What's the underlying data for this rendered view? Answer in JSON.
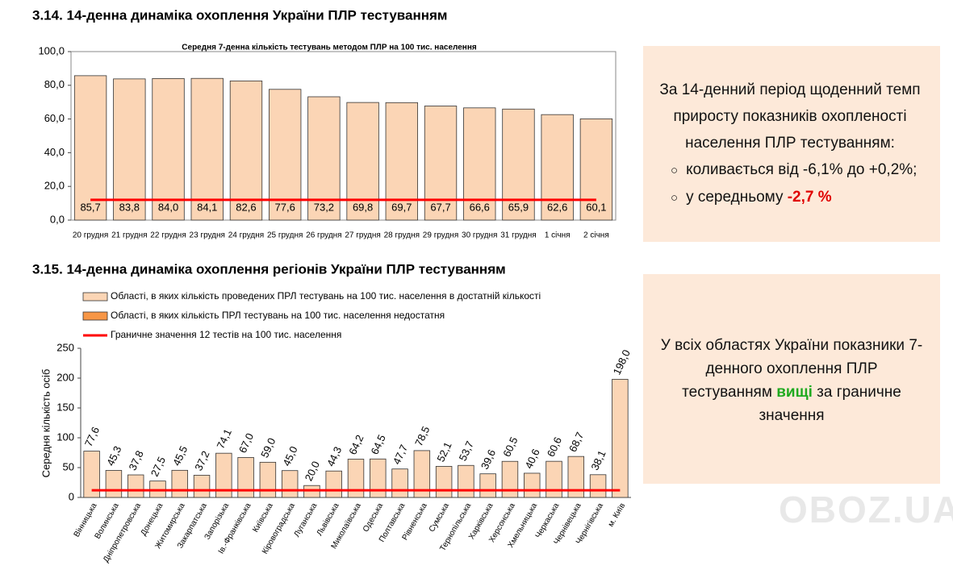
{
  "headings": [
    "3.14.  14-денна динаміка охоплення України ПЛР тестуванням",
    "3.15.  14-денна динаміка охоплення регіонів України ПЛР тестуванням"
  ],
  "chart_data": [
    {
      "type": "bar",
      "title": "Середня 7-денна кількість тестувань  методом ПЛР на 100 тис. населення",
      "categories": [
        "20 грудня",
        "21 грудня",
        "22 грудня",
        "23 грудня",
        "24 грудня",
        "25 грудня",
        "26 грудня",
        "27 грудня",
        "28 грудня",
        "29 грудня",
        "30 грудня",
        "31 грудня",
        "1 січня",
        "2 січня"
      ],
      "values": [
        85.7,
        83.8,
        84.0,
        84.1,
        82.6,
        77.6,
        73.2,
        69.8,
        69.7,
        67.7,
        66.6,
        65.9,
        62.6,
        60.1
      ],
      "value_labels": [
        "85,7",
        "83,8",
        "84,0",
        "84,1",
        "82,6",
        "77,6",
        "73,2",
        "69,8",
        "69,7",
        "67,7",
        "66,6",
        "65,9",
        "62,6",
        "60,1"
      ],
      "color": "#fbd5b5",
      "ylim": [
        0,
        100
      ],
      "yticks": [
        {
          "value": 0,
          "label": "0,0"
        },
        {
          "value": 20,
          "label": "20,0"
        },
        {
          "value": 40,
          "label": "40,0"
        },
        {
          "value": 60,
          "label": "60,0"
        },
        {
          "value": 80,
          "label": "80,0"
        },
        {
          "value": 100,
          "label": "100,0"
        }
      ],
      "reference_line": {
        "value": 12,
        "color": "#ff0000"
      }
    },
    {
      "type": "bar",
      "y_label": "Середня кількість осіб",
      "categories": [
        "Вінницька",
        "Волинська",
        "Дніпропетровська",
        "Донецька",
        "Житомирська",
        "Закарпатська",
        "Запорізька",
        "Ів.-Франківська",
        "Київська",
        "Кіровоградська",
        "Луганська",
        "Львівська",
        "Миколаївська",
        "Одеська",
        "Полтавська",
        "Рівненська",
        "Сумська",
        "Тернопільська",
        "Харківська",
        "Херсонська",
        "Хмельницька",
        "Черкаська",
        "Чернівецька",
        "Чернігівська",
        "м. Київ"
      ],
      "series": [
        {
          "name": "Області, в яких кількість проведених ПРЛ тестувань на 100 тис. населення в достатній кількості",
          "color": "#fbd5b5",
          "values": [
            77.6,
            45.3,
            37.8,
            27.5,
            45.5,
            37.2,
            74.1,
            67.0,
            59.0,
            45.0,
            20.0,
            44.3,
            64.2,
            64.5,
            47.7,
            78.5,
            52.1,
            53.7,
            39.6,
            60.5,
            40.6,
            60.6,
            68.7,
            38.1,
            198.0
          ],
          "value_labels": [
            "77,6",
            "45,3",
            "37,8",
            "27,5",
            "45,5",
            "37,2",
            "74,1",
            "67,0",
            "59,0",
            "45,0",
            "20,0",
            "44,3",
            "64,2",
            "64,5",
            "47,7",
            "78,5",
            "52,1",
            "53,7",
            "39,6",
            "60,5",
            "40,6",
            "60,6",
            "68,7",
            "38,1",
            "198,0"
          ]
        },
        {
          "name": "Області, в яких кількість ПРЛ тестувань на 100 тис. населення недостатня",
          "color": "#f79646",
          "values": [
            null,
            null,
            null,
            null,
            null,
            null,
            null,
            null,
            null,
            null,
            null,
            null,
            null,
            null,
            null,
            null,
            null,
            null,
            null,
            null,
            null,
            null,
            null,
            null,
            null
          ]
        }
      ],
      "ylim": [
        0,
        250
      ],
      "yticks": [
        0,
        50,
        100,
        150,
        200,
        250
      ],
      "reference_line": {
        "value": 12,
        "color": "#ff0000",
        "name": "Граничне значення 12 тестів на 100 тис. населення"
      }
    }
  ],
  "notes": [
    {
      "text": "За 14-денний період щоденний темп приросту показників охопленості населення ПЛР тестуванням:",
      "bullets": [
        {
          "text": "коливається від -6,1% до +0,2%;"
        },
        {
          "text": "у середньому",
          "highlight": "-2,7 %"
        }
      ]
    },
    {
      "before": "У всіх областях України показники 7-денного охоплення ПЛР тестуванням",
      "highlight": "вищі",
      "after": "за граничне значення"
    }
  ],
  "watermark": "OBOZ.UA"
}
